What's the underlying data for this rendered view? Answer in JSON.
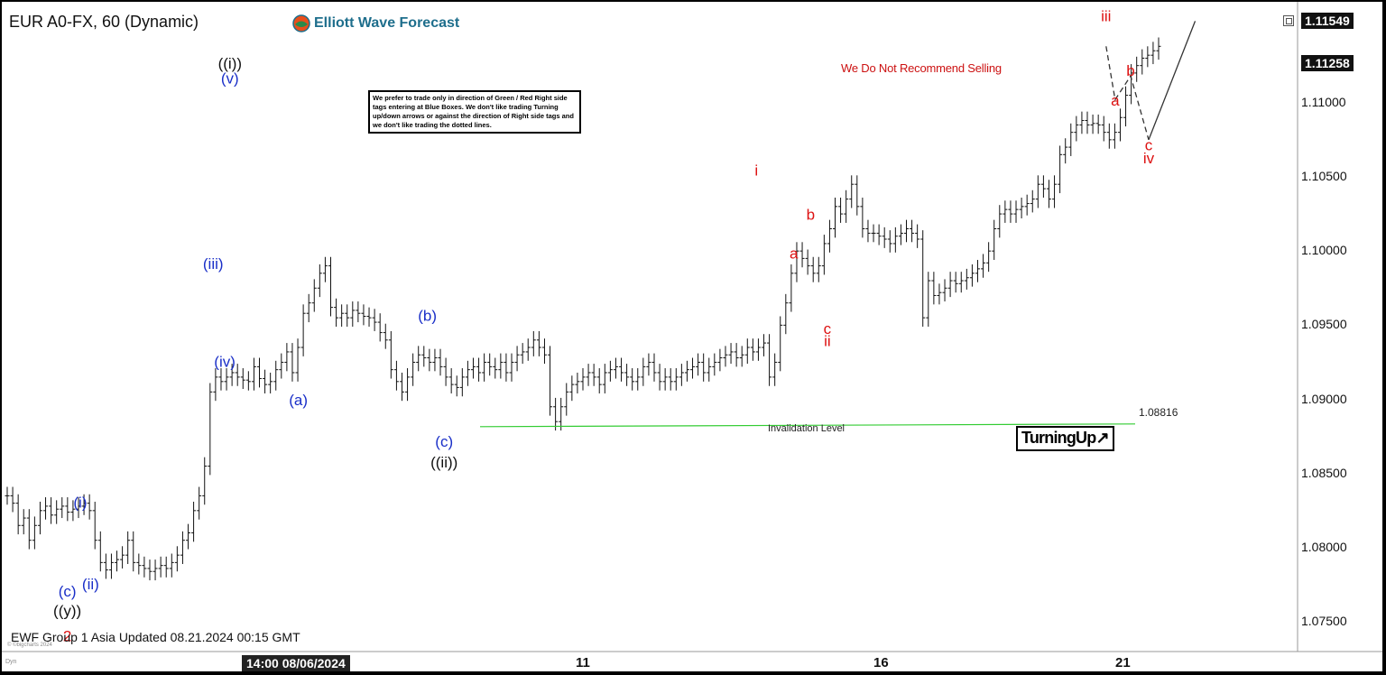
{
  "header": {
    "symbol": "EUR A0-FX, 60 (Dynamic)",
    "brand": "Elliott Wave Forecast"
  },
  "notice_text": "We prefer to trade only in direction of Green / Red Right side tags entering at Blue Boxes. We don't like trading Turning up/down arrows or against the direction of Right side tags and we don't like trading the dotted lines.",
  "warning_text": "We Do Not Recommend Selling",
  "invalidation": {
    "label": "Invalidation Level",
    "value_text": "1.08816",
    "level": 1.08816
  },
  "turning_label": "TurningUp",
  "turning_arrow": "↗",
  "footer_text": "EWF Group 1 Asia Updated 08.21.2024 00:15 GMT",
  "copyright_text": "© ©bigcharts 2024",
  "dyn_text": "Dyn",
  "colors": {
    "bars": "#111111",
    "invalidation_line": "#33cc33",
    "wave_blue": "#1a2fc8",
    "wave_red": "#dd1111",
    "wave_black": "#111111",
    "projection": "#333333"
  },
  "chart_data": {
    "type": "line",
    "series_style": "ohlc-bars",
    "timeframe": "60",
    "ylim": [
      1.073,
      1.1168
    ],
    "y_ticks": [
      1.075,
      1.08,
      1.085,
      1.09,
      1.095,
      1.1,
      1.105,
      1.11
    ],
    "y_tick_labels": [
      "1.07500",
      "1.08000",
      "1.08500",
      "1.09000",
      "1.09500",
      "1.10000",
      "1.10500",
      "1.11000"
    ],
    "price_tags": [
      {
        "value": 1.11549,
        "text": "1.11549"
      },
      {
        "value": 1.11258,
        "text": "1.11258"
      }
    ],
    "x_date_box": "14:00 08/06/2024",
    "x_tick_labels": [
      "11",
      "16",
      "21"
    ],
    "bars": [
      1.0835,
      1.083,
      1.0815,
      1.082,
      1.0805,
      1.0815,
      1.0825,
      1.0828,
      1.0822,
      1.0826,
      1.0828,
      1.0824,
      1.0826,
      1.0828,
      1.083,
      1.0825,
      1.0805,
      1.079,
      1.0785,
      1.079,
      1.0792,
      1.0795,
      1.0805,
      1.079,
      1.0788,
      1.0786,
      1.0784,
      1.0786,
      1.0788,
      1.0786,
      1.079,
      1.0795,
      1.0805,
      1.081,
      1.0825,
      1.0835,
      1.0855,
      1.0905,
      1.0915,
      1.0912,
      1.0915,
      1.0918,
      1.0915,
      1.0913,
      1.0912,
      1.0922,
      1.0914,
      1.091,
      1.0912,
      1.092,
      1.0925,
      1.0932,
      1.0918,
      1.0935,
      1.0958,
      1.0965,
      1.0975,
      1.0985,
      1.099,
      1.0962,
      1.0955,
      1.0958,
      1.0955,
      1.096,
      1.0958,
      1.0956,
      1.0955,
      1.0952,
      1.0945,
      1.094,
      1.092,
      1.0912,
      1.0905,
      1.0915,
      1.0925,
      1.093,
      1.0928,
      1.0925,
      1.0928,
      1.0922,
      1.0915,
      1.091,
      1.0908,
      1.0915,
      1.092,
      1.0922,
      1.0918,
      1.0925,
      1.0922,
      1.092,
      1.0925,
      1.0918,
      1.0925,
      1.093,
      1.0932,
      1.0935,
      1.094,
      1.0935,
      1.093,
      1.0895,
      1.0885,
      1.0895,
      1.0905,
      1.091,
      1.0912,
      1.0915,
      1.0918,
      1.0915,
      1.091,
      1.0918,
      1.092,
      1.0922,
      1.0918,
      1.0915,
      1.0912,
      1.0915,
      1.0922,
      1.0925,
      1.0918,
      1.0912,
      1.0915,
      1.0912,
      1.0915,
      1.0918,
      1.092,
      1.0922,
      1.0925,
      1.0918,
      1.0922,
      1.0925,
      1.0928,
      1.093,
      1.0932,
      1.0928,
      1.093,
      1.0935,
      1.0932,
      1.0935,
      1.0938,
      1.0915,
      1.0925,
      1.095,
      1.0965,
      1.0985,
      1.1,
      1.0995,
      1.099,
      1.0985,
      1.099,
      1.1005,
      1.1015,
      1.103,
      1.1025,
      1.1035,
      1.1045,
      1.103,
      1.1015,
      1.1012,
      1.1012,
      1.101,
      1.1008,
      1.1005,
      1.101,
      1.1012,
      1.1015,
      1.1012,
      1.1008,
      1.0955,
      1.098,
      1.097,
      1.0972,
      1.0975,
      1.098,
      1.0978,
      1.098,
      1.0982,
      1.0985,
      1.0988,
      1.0992,
      1.1,
      1.1015,
      1.1025,
      1.1028,
      1.1025,
      1.1028,
      1.103,
      1.1032,
      1.1035,
      1.1045,
      1.1042,
      1.1035,
      1.1045,
      1.1065,
      1.107,
      1.108,
      1.1085,
      1.1088,
      1.1085,
      1.1086,
      1.1085,
      1.108,
      1.1075,
      1.108,
      1.109,
      1.1105,
      1.112,
      1.1125,
      1.113,
      1.1132,
      1.1135,
      1.1138
    ]
  },
  "wave_labels": [
    {
      "text": "((i))",
      "color": "black",
      "xf": 0.174,
      "y": 1.1123
    },
    {
      "text": "(v)",
      "color": "blue",
      "xf": 0.174,
      "y": 1.1113
    },
    {
      "text": "(iii)",
      "color": "blue",
      "xf": 0.161,
      "y": 1.0988
    },
    {
      "text": "(iv)",
      "color": "blue",
      "xf": 0.17,
      "y": 1.0922
    },
    {
      "text": "(a)",
      "color": "blue",
      "xf": 0.227,
      "y": 1.0896
    },
    {
      "text": "(b)",
      "color": "blue",
      "xf": 0.327,
      "y": 1.0953
    },
    {
      "text": "(c)",
      "color": "blue",
      "xf": 0.34,
      "y": 1.0868
    },
    {
      "text": "((ii))",
      "color": "black",
      "xf": 0.34,
      "y": 1.0854
    },
    {
      "text": "(i)",
      "color": "blue",
      "xf": 0.058,
      "y": 1.0827
    },
    {
      "text": "(ii)",
      "color": "blue",
      "xf": 0.066,
      "y": 1.0772
    },
    {
      "text": "(c)",
      "color": "blue",
      "xf": 0.048,
      "y": 1.0767
    },
    {
      "text": "((y))",
      "color": "black",
      "xf": 0.048,
      "y": 1.0754
    },
    {
      "text": "2",
      "color": "red",
      "xf": 0.048,
      "y": 1.0737
    },
    {
      "text": "i",
      "color": "red",
      "xf": 0.582,
      "y": 1.1051
    },
    {
      "text": "a",
      "color": "red",
      "xf": 0.611,
      "y": 1.0995
    },
    {
      "text": "b",
      "color": "red",
      "xf": 0.624,
      "y": 1.1021
    },
    {
      "text": "c",
      "color": "red",
      "xf": 0.637,
      "y": 1.0944
    },
    {
      "text": "ii",
      "color": "red",
      "xf": 0.637,
      "y": 1.0936
    },
    {
      "text": "iii",
      "color": "red",
      "xf": 0.853,
      "y": 1.1155
    },
    {
      "text": "a",
      "color": "red",
      "xf": 0.86,
      "y": 1.1098
    },
    {
      "text": "b",
      "color": "red",
      "xf": 0.872,
      "y": 1.1118
    },
    {
      "text": "c",
      "color": "red",
      "xf": 0.886,
      "y": 1.1068
    },
    {
      "text": "iv",
      "color": "red",
      "xf": 0.886,
      "y": 1.1059
    }
  ],
  "projection": {
    "dashed": [
      [
        0.853,
        1.1138
      ],
      [
        0.86,
        1.1102
      ],
      [
        0.872,
        1.1118
      ],
      [
        0.886,
        1.1075
      ]
    ],
    "solid": [
      [
        0.886,
        1.1075
      ],
      [
        0.922,
        1.1155
      ]
    ]
  }
}
